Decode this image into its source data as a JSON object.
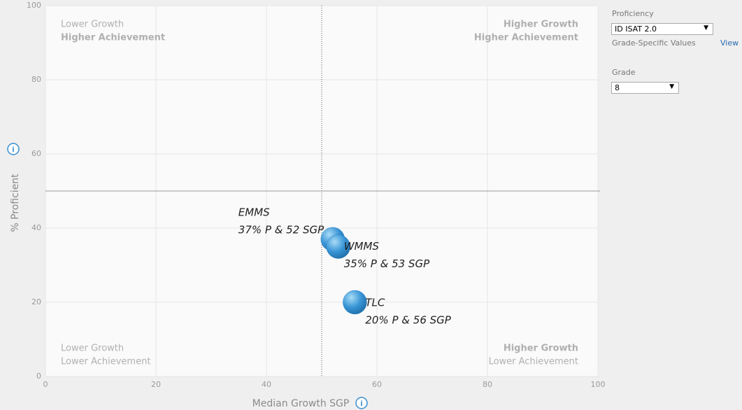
{
  "chart_data": {
    "type": "bubble",
    "x_label": "Median Growth SGP",
    "y_label": "% Proficient",
    "x": [
      52,
      53,
      56
    ],
    "values": [
      37,
      35,
      20
    ],
    "point_labels": [
      "EMMS",
      "WMMS",
      "TLC"
    ],
    "value_labels": [
      "37% P & 52 SGP",
      "35% P & 53 SGP",
      "20% P & 56 SGP"
    ],
    "color": "#2f86c8",
    "xlim": [
      0,
      100
    ],
    "xticks": [
      0,
      20,
      40,
      60,
      80,
      100
    ],
    "ylim": [
      0,
      100
    ],
    "yticks": [
      0,
      20,
      40,
      60,
      80,
      100
    ],
    "x_reference": 50,
    "y_reference": 50,
    "grid": true,
    "quadrants": {
      "top_left": [
        "Lower Growth",
        "Higher Achievement"
      ],
      "top_right": [
        "Higher Growth",
        "Higher Achievement"
      ],
      "bottom_left": [
        "Lower Growth",
        "Lower Achievement"
      ],
      "bottom_right": [
        "Higher Growth",
        "Lower Achievement"
      ]
    }
  },
  "controls": {
    "proficiency_label": "Proficiency",
    "proficiency_value": "ID ISAT 2.0",
    "grade_specific": "Grade-Specific Values",
    "view": "View",
    "grade_label": "Grade",
    "grade_value": "8"
  }
}
